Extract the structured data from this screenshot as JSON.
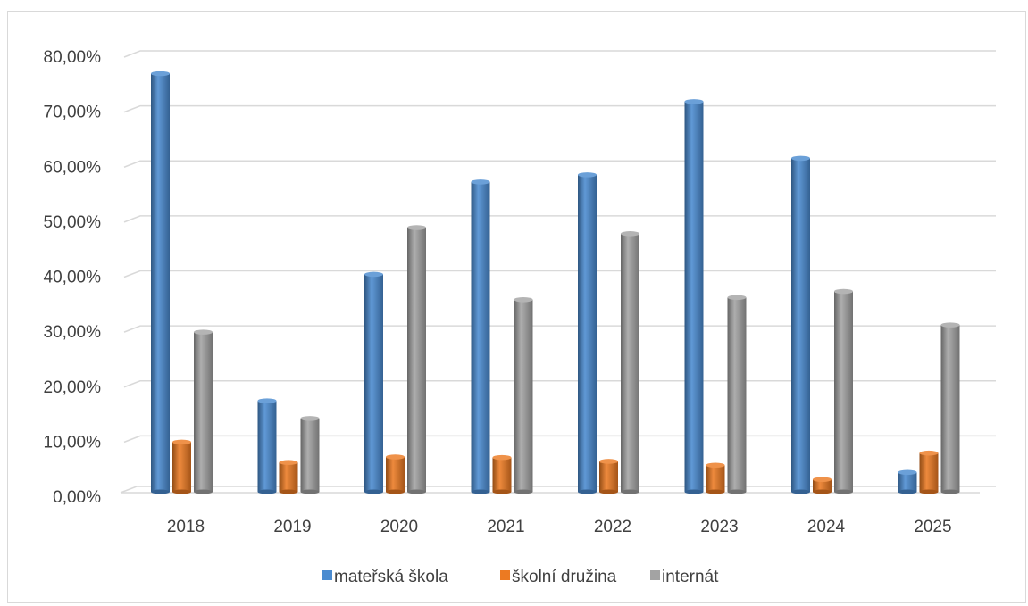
{
  "chart_data": {
    "type": "bar",
    "title": "",
    "xlabel": "",
    "ylabel": "",
    "categories": [
      "2018",
      "2019",
      "2020",
      "2021",
      "2022",
      "2023",
      "2024",
      "2025"
    ],
    "series": [
      {
        "name": "mateřská škola",
        "color": "#4a8bd0",
        "values": [
          77.0,
          17.5,
          40.5,
          57.3,
          58.6,
          71.9,
          61.6,
          4.5
        ]
      },
      {
        "name": "školní družina",
        "color": "#ec7a22",
        "values": [
          10.0,
          6.3,
          7.3,
          7.2,
          6.5,
          5.8,
          3.2,
          8.0
        ]
      },
      {
        "name": "internát",
        "color": "#a3a3a3",
        "values": [
          30.0,
          14.3,
          49.0,
          35.9,
          47.9,
          36.3,
          37.4,
          31.3
        ]
      }
    ],
    "ylim": [
      0,
      80
    ],
    "ytick_labels": [
      "0,00%",
      "10,00%",
      "20,00%",
      "30,00%",
      "40,00%",
      "50,00%",
      "60,00%",
      "70,00%",
      "80,00%"
    ],
    "grid": true,
    "legend_position": "bottom"
  }
}
